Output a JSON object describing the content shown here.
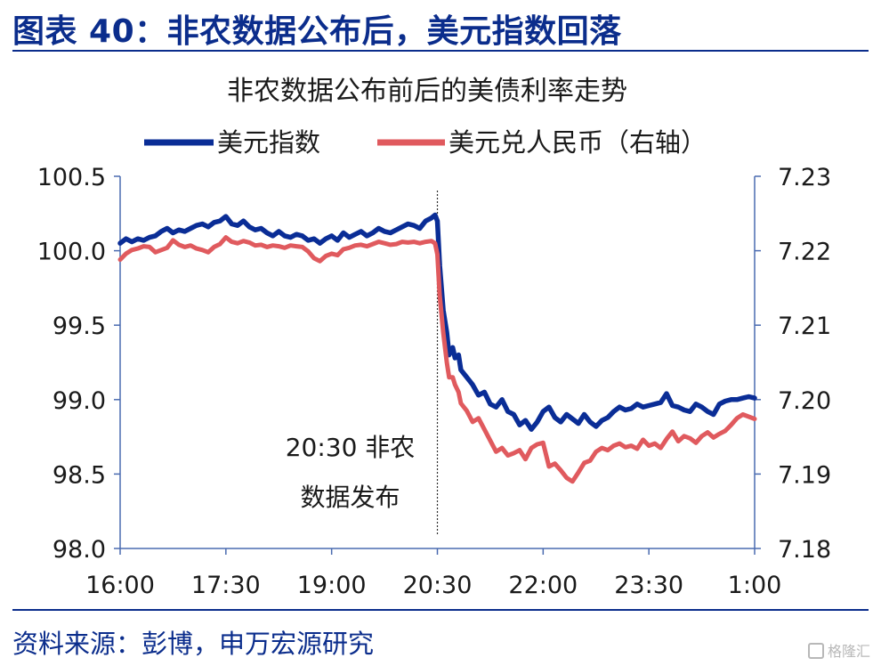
{
  "header": {
    "figure_title": "图表 40：非农数据公布后，美元指数回落",
    "source": "资料来源：彭博，申万宏源研究",
    "watermark": "格隆汇"
  },
  "colors": {
    "brand": "#0b2d8c",
    "dxy": "#0a2d96",
    "usdcny": "#e05a5e",
    "axis": "#4a6bb0"
  },
  "chart_data": {
    "type": "line",
    "title": "非农数据公布前后的美债利率走势",
    "x_ticks": [
      "16:00",
      "17:30",
      "19:00",
      "20:30",
      "22:00",
      "23:30",
      "1:00"
    ],
    "x_range_minutes": [
      0,
      540
    ],
    "y_left": {
      "ticks": [
        "100.5",
        "100.0",
        "99.5",
        "99.0",
        "98.5",
        "98.0"
      ],
      "range": [
        98.0,
        100.5
      ]
    },
    "y_right": {
      "ticks": [
        "7.23",
        "7.22",
        "7.21",
        "7.20",
        "7.19",
        "7.18"
      ],
      "range": [
        7.18,
        7.23
      ]
    },
    "annotation": {
      "x_minutes": 270,
      "line1": "20:30 非农",
      "line2": "数据发布"
    },
    "legend": {
      "placement": "top-center"
    },
    "series": [
      {
        "name": "美元指数",
        "axis": "left",
        "color": "#0a2d96",
        "x": [
          0,
          5,
          10,
          15,
          20,
          25,
          30,
          35,
          40,
          45,
          50,
          55,
          60,
          65,
          70,
          75,
          80,
          85,
          90,
          95,
          100,
          105,
          110,
          115,
          120,
          125,
          130,
          135,
          140,
          145,
          150,
          155,
          160,
          165,
          170,
          175,
          180,
          185,
          190,
          195,
          200,
          205,
          210,
          215,
          220,
          225,
          230,
          235,
          240,
          245,
          250,
          255,
          260,
          265,
          268,
          270,
          272,
          275,
          278,
          280,
          283,
          285,
          288,
          290,
          295,
          300,
          305,
          310,
          315,
          320,
          325,
          330,
          335,
          340,
          345,
          350,
          355,
          360,
          365,
          370,
          375,
          380,
          385,
          390,
          395,
          400,
          405,
          410,
          415,
          420,
          425,
          430,
          435,
          440,
          445,
          450,
          455,
          460,
          465,
          470,
          475,
          480,
          485,
          490,
          495,
          500,
          505,
          510,
          515,
          520,
          525,
          530,
          535,
          540
        ],
        "values": [
          100.05,
          100.08,
          100.06,
          100.08,
          100.07,
          100.09,
          100.1,
          100.13,
          100.15,
          100.12,
          100.14,
          100.13,
          100.15,
          100.17,
          100.18,
          100.16,
          100.19,
          100.2,
          100.23,
          100.18,
          100.17,
          100.2,
          100.16,
          100.14,
          100.15,
          100.12,
          100.1,
          100.13,
          100.1,
          100.09,
          100.11,
          100.1,
          100.07,
          100.08,
          100.05,
          100.08,
          100.1,
          100.07,
          100.12,
          100.09,
          100.11,
          100.13,
          100.1,
          100.12,
          100.15,
          100.13,
          100.12,
          100.14,
          100.16,
          100.18,
          100.17,
          100.15,
          100.2,
          100.22,
          100.24,
          100.2,
          99.9,
          99.6,
          99.45,
          99.3,
          99.35,
          99.28,
          99.3,
          99.2,
          99.15,
          99.1,
          99.03,
          99.05,
          98.97,
          98.95,
          99.0,
          98.92,
          98.9,
          98.83,
          98.86,
          98.8,
          98.85,
          98.92,
          98.95,
          98.88,
          98.85,
          98.9,
          98.87,
          98.84,
          98.9,
          98.85,
          98.82,
          98.86,
          98.88,
          98.92,
          98.95,
          98.93,
          98.94,
          98.97,
          98.95,
          98.96,
          98.97,
          98.98,
          99.04,
          98.96,
          98.95,
          98.93,
          98.92,
          98.97,
          98.95,
          98.92,
          98.9,
          98.97,
          98.99,
          99.0,
          99.0,
          99.01,
          99.02,
          99.01
        ]
      },
      {
        "name": "美元兑人民币（右轴）",
        "axis": "right",
        "color": "#e05a5e",
        "x": [
          0,
          5,
          10,
          15,
          20,
          25,
          30,
          35,
          40,
          45,
          50,
          55,
          60,
          65,
          70,
          75,
          80,
          85,
          90,
          95,
          100,
          105,
          110,
          115,
          120,
          125,
          130,
          135,
          140,
          145,
          150,
          155,
          160,
          165,
          170,
          175,
          180,
          185,
          190,
          195,
          200,
          205,
          210,
          215,
          220,
          225,
          230,
          235,
          240,
          245,
          250,
          255,
          260,
          265,
          268,
          270,
          272,
          275,
          278,
          280,
          283,
          285,
          288,
          290,
          295,
          300,
          305,
          310,
          315,
          320,
          325,
          330,
          335,
          340,
          345,
          350,
          355,
          360,
          365,
          370,
          375,
          380,
          385,
          390,
          395,
          400,
          405,
          410,
          415,
          420,
          425,
          430,
          435,
          440,
          445,
          450,
          455,
          460,
          465,
          470,
          475,
          480,
          485,
          490,
          495,
          500,
          505,
          510,
          515,
          520,
          525,
          530,
          535,
          540
        ],
        "values": [
          7.2188,
          7.2196,
          7.2201,
          7.2203,
          7.2206,
          7.2205,
          7.2198,
          7.2201,
          7.2204,
          7.2214,
          7.2208,
          7.2205,
          7.2207,
          7.2203,
          7.2201,
          7.2198,
          7.2205,
          7.2209,
          7.2218,
          7.2212,
          7.221,
          7.2213,
          7.2211,
          7.2207,
          7.2208,
          7.2205,
          7.2207,
          7.2206,
          7.2204,
          7.2207,
          7.2206,
          7.2205,
          7.2199,
          7.219,
          7.2186,
          7.2193,
          7.2196,
          7.2194,
          7.2202,
          7.2204,
          7.2207,
          7.2208,
          7.2206,
          7.2209,
          7.2212,
          7.221,
          7.2208,
          7.2209,
          7.2212,
          7.2211,
          7.2212,
          7.221,
          7.2212,
          7.2213,
          7.221,
          7.2195,
          7.214,
          7.209,
          7.205,
          7.203,
          7.203,
          7.202,
          7.201,
          7.1995,
          7.1985,
          7.197,
          7.1975,
          7.196,
          7.1945,
          7.193,
          7.1935,
          7.1925,
          7.1928,
          7.1932,
          7.192,
          7.1935,
          7.194,
          7.1942,
          7.191,
          7.1914,
          7.1905,
          7.1895,
          7.189,
          7.1902,
          7.1915,
          7.1918,
          7.193,
          7.1935,
          7.1932,
          7.1938,
          7.1941,
          7.1936,
          7.1938,
          7.1934,
          7.1946,
          7.1938,
          7.1941,
          7.1935,
          7.1947,
          7.1957,
          7.1944,
          7.1951,
          7.1948,
          7.1942,
          7.1951,
          7.1956,
          7.1949,
          7.1954,
          7.1958,
          7.1966,
          7.1975,
          7.198,
          7.1977,
          7.1974
        ]
      }
    ]
  }
}
